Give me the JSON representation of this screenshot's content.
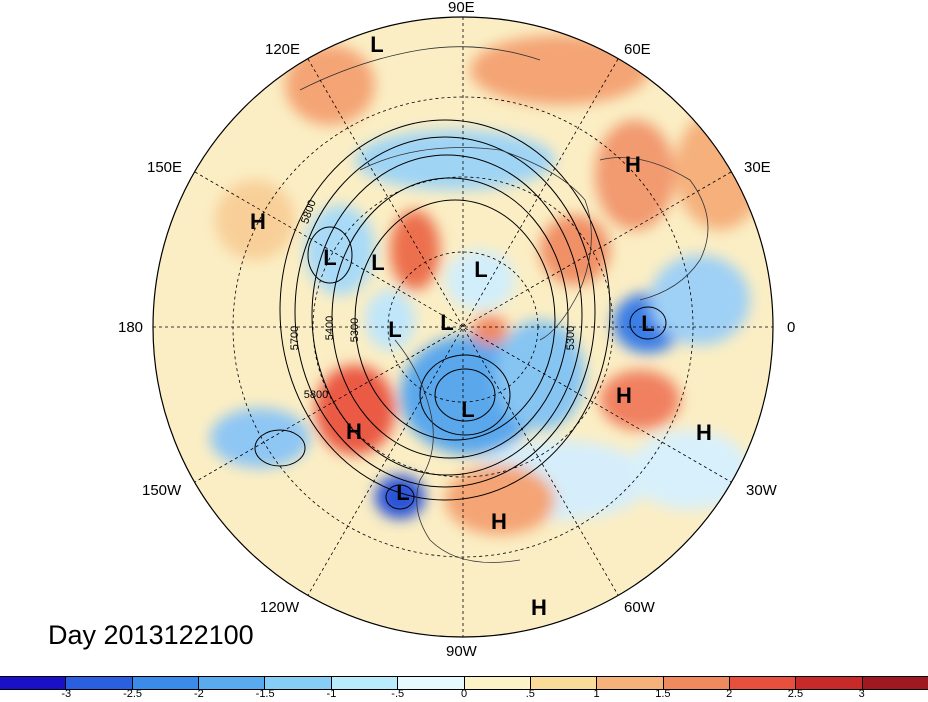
{
  "title": "Day 2013122100",
  "longitude_labels": [
    "90E",
    "120E",
    "60E",
    "150E",
    "30E",
    "180",
    "0",
    "150W",
    "30W",
    "120W",
    "60W",
    "90W"
  ],
  "contour_labels": [
    "5800",
    "5700",
    "5400",
    "5300",
    "5800",
    "5300"
  ],
  "pressure_centers": [
    {
      "label": "L"
    },
    {
      "label": "L"
    },
    {
      "label": "L"
    },
    {
      "label": "L"
    },
    {
      "label": "L"
    },
    {
      "label": "L"
    },
    {
      "label": "L"
    },
    {
      "label": "L"
    },
    {
      "label": "L"
    },
    {
      "label": "H"
    },
    {
      "label": "H"
    },
    {
      "label": "H"
    },
    {
      "label": "H"
    },
    {
      "label": "H"
    },
    {
      "label": "H"
    },
    {
      "label": "H"
    }
  ],
  "colorbar": {
    "tick_labels": [
      "-3",
      "-2.5",
      "-2",
      "-1.5",
      "-1",
      "-.5",
      "0",
      ".5",
      "1",
      "1.5",
      "2",
      "2.5",
      "3"
    ],
    "colors": [
      "#1a10c8",
      "#2a5fe0",
      "#3a8ce8",
      "#5aaaf0",
      "#86cef6",
      "#b8ecfa",
      "#e6fafd",
      "#fbf2c8",
      "#f9dc9a",
      "#f5b27a",
      "#ef8a5e",
      "#e8503e",
      "#c82a2a",
      "#a01820"
    ]
  }
}
